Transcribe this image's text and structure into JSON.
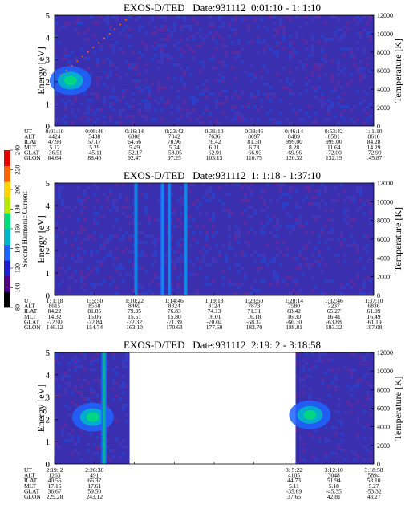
{
  "colorbar": {
    "label": "Second Harmonic Current",
    "ticks": [
      "80",
      "100",
      "120",
      "140",
      "160",
      "180",
      "200",
      "220",
      "240"
    ],
    "colors": [
      "#000000",
      "#4b0082",
      "#2020c8",
      "#1e64ff",
      "#00b4c8",
      "#00dc78",
      "#b4e600",
      "#ffd200",
      "#ff6400",
      "#e60000"
    ]
  },
  "chart_data": [
    {
      "type": "heatmap",
      "title": "EXOS-D/TED   Date:931112  0:01:10 - 1: 1:10",
      "ylabel": "Energy [eV]",
      "y2label": "Temperature [K]",
      "ylim": [
        0,
        5
      ],
      "y2lim": [
        0,
        12000
      ],
      "yticks": [
        "0",
        "1",
        "2",
        "3",
        "4",
        "5"
      ],
      "y2ticks": [
        "0",
        "2000",
        "4000",
        "6000",
        "8000",
        "10000",
        "12000"
      ],
      "row_labels": [
        "UT",
        "ALT",
        "ILAT",
        "MLT",
        "GLAT",
        "GLON"
      ],
      "columns": [
        [
          "0:01:10",
          "4424",
          "47.93",
          "5.12",
          "-36.51",
          "84.64"
        ],
        [
          "0:08:46",
          "5438",
          "57.17",
          "5.29",
          "-45.11",
          "88.40"
        ],
        [
          "0:16:14",
          "6308",
          "64.66",
          "5.49",
          "-52.17",
          "92.47"
        ],
        [
          "0:23:42",
          "7042",
          "70.96",
          "5.74",
          "-58.05",
          "97.25"
        ],
        [
          "0:31:10",
          "7636",
          "76.42",
          "6.11",
          "-62.91",
          "103.13"
        ],
        [
          "0:38:46",
          "8097",
          "81.30",
          "6.78",
          "-66.93",
          "110.75"
        ],
        [
          "0:46:14",
          "8409",
          "999.00",
          "8.28",
          "-69.96",
          "120.32"
        ],
        [
          "0:53:42",
          "8581",
          "999.00",
          "11.64",
          "-72.00",
          "132.19"
        ],
        [
          "1: 1:10",
          "8616",
          "84.28",
          "14.29",
          "-72.90",
          "145.87"
        ]
      ],
      "data_spans": [
        [
          0,
          1
        ]
      ],
      "features": [
        {
          "kind": "blob",
          "x": 0.05,
          "y": 2.05,
          "value": 170
        },
        {
          "kind": "trace",
          "x_from": 0.02,
          "x_to": 0.24,
          "y_from": 2.3,
          "y_to": 5.0
        }
      ],
      "background_value": 118
    },
    {
      "type": "heatmap",
      "title": "EXOS-D/TED   Date:931112  1: 1:18 - 1:37:10",
      "ylabel": "Energy [eV]",
      "y2label": "Temperature [K]",
      "ylim": [
        0,
        5
      ],
      "y2lim": [
        0,
        12000
      ],
      "yticks": [
        "0",
        "1",
        "2",
        "3",
        "4",
        "5"
      ],
      "y2ticks": [
        "0",
        "2000",
        "4000",
        "6000",
        "8000",
        "10000",
        "12000"
      ],
      "row_labels": [
        "UT",
        "ALT",
        "ILAT",
        "MLT",
        "GLAT",
        "GLON"
      ],
      "columns": [
        [
          "1: 1:18",
          "8615",
          "84.22",
          "14.32",
          "-72.90",
          "146.12"
        ],
        [
          "1: 5:50",
          "8568",
          "81.85",
          "15.06",
          "-72.84",
          "154.74"
        ],
        [
          "1:10:22",
          "8469",
          "79.35",
          "15.51",
          "-72.32",
          "163.10"
        ],
        [
          "1:14:46",
          "8324",
          "76.83",
          "15.80",
          "-71.39",
          "170.63"
        ],
        [
          "1:19:18",
          "8124",
          "74.13",
          "16.01",
          "-70.04",
          "177.60"
        ],
        [
          "1:23:50",
          "7873",
          "71.31",
          "16.18",
          "-68.32",
          "183.70"
        ],
        [
          "1:28:14",
          "7580",
          "68.42",
          "16.30",
          "-66.30",
          "188.81"
        ],
        [
          "1:32:46",
          "7237",
          "65.27",
          "16.41",
          "-63.88",
          "193.32"
        ],
        [
          "1:37:10",
          "6836",
          "61.99",
          "16.49",
          "-61.19",
          "197.08"
        ]
      ],
      "data_spans": [
        [
          0,
          1
        ]
      ],
      "features": [
        {
          "kind": "stripe",
          "x": 0.255,
          "width": 0.012,
          "value": 145
        },
        {
          "kind": "stripe",
          "x": 0.338,
          "width": 0.012,
          "value": 145
        },
        {
          "kind": "stripe",
          "x": 0.36,
          "width": 0.01,
          "value": 145
        },
        {
          "kind": "stripe",
          "x": 0.411,
          "width": 0.012,
          "value": 145
        }
      ],
      "background_value": 118
    },
    {
      "type": "heatmap",
      "title": "EXOS-D/TED   Date:931112  2:19: 2 - 3:18:58",
      "ylabel": "Energy [eV]",
      "y2label": "Temperature [K]",
      "ylim": [
        0,
        5
      ],
      "y2lim": [
        0,
        12000
      ],
      "yticks": [
        "0",
        "1",
        "2",
        "3",
        "4",
        "5"
      ],
      "y2ticks": [
        "0",
        "2000",
        "4000",
        "6000",
        "8000",
        "10000",
        "12000"
      ],
      "row_labels": [
        "UT",
        "ALT",
        "ILAT",
        "MLT",
        "GLAT",
        "GLON"
      ],
      "columns": [
        [
          "2:19: 2",
          "1263",
          "40.56",
          "17.16",
          "36.67",
          "229.28"
        ],
        [
          "2:26:38",
          "491",
          "66.37",
          "17.61",
          "59.50",
          "243.12"
        ],
        [
          "",
          "",
          "",
          "",
          "",
          ""
        ],
        [
          "",
          "",
          "",
          "",
          "",
          ""
        ],
        [
          "",
          "",
          "",
          "",
          "",
          ""
        ],
        [
          "",
          "",
          "",
          "",
          "",
          ""
        ],
        [
          "3: 5:22",
          "4105",
          "44.73",
          "5.11",
          "-35.69",
          "37.65"
        ],
        [
          "3:12:10",
          "3048",
          "51.94",
          "5.18",
          "-45.35",
          "42.81"
        ],
        [
          "3:18:58",
          "5894",
          "58.10",
          "5.27",
          "-53.32",
          "48.27"
        ]
      ],
      "data_spans": [
        [
          0,
          0.235
        ],
        [
          0.755,
          1
        ]
      ],
      "features": [
        {
          "kind": "blob",
          "x": 0.12,
          "y": 2.1,
          "value": 165
        },
        {
          "kind": "stripe",
          "x": 0.155,
          "width": 0.018,
          "value": 170
        },
        {
          "kind": "blob",
          "x": 0.8,
          "y": 2.2,
          "value": 160
        }
      ],
      "background_value": 120
    }
  ]
}
